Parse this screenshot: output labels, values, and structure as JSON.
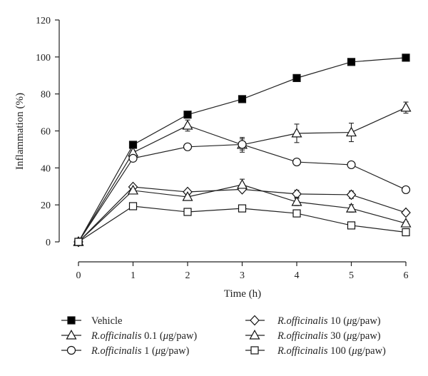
{
  "chart_data": {
    "type": "line",
    "title": "",
    "xlabel": "Time (h)",
    "ylabel": "Inflammation (%)",
    "x": [
      0,
      1,
      2,
      3,
      4,
      5,
      6
    ],
    "xlim": [
      0,
      6
    ],
    "ylim": [
      0,
      120
    ],
    "xticks": [
      0,
      1,
      2,
      3,
      4,
      5,
      6
    ],
    "yticks": [
      0,
      20,
      40,
      60,
      80,
      100,
      120
    ],
    "grid": false,
    "legend_position": "bottom, two columns",
    "series": [
      {
        "name": "Vehicle",
        "marker": "square",
        "fill": "filled",
        "color": "#000000",
        "values": [
          0,
          52.5,
          68.8,
          77.2,
          88.6,
          97.3,
          99.6
        ],
        "errors": [
          0,
          1,
          1.5,
          1,
          1,
          1,
          1
        ]
      },
      {
        "name": "R.officinalis 0.1 (μg/paw)",
        "marker": "triangle",
        "fill": "open",
        "color": "#000000",
        "values": [
          0,
          48.3,
          62.9,
          52.5,
          58.7,
          59.2,
          72.6
        ],
        "errors": [
          0,
          1,
          3,
          4,
          5,
          5,
          3
        ]
      },
      {
        "name": "R.officinalis 1 (μg/paw)",
        "marker": "circle",
        "fill": "open",
        "color": "#000000",
        "values": [
          0,
          45.2,
          51.4,
          52.7,
          43.2,
          41.7,
          28.2
        ],
        "errors": [
          0,
          1,
          1,
          3,
          1,
          1,
          1
        ]
      },
      {
        "name": "R.officinalis 10 (μg/paw)",
        "marker": "diamond",
        "fill": "open",
        "color": "#000000",
        "values": [
          0,
          29.7,
          27.0,
          28.4,
          25.9,
          25.5,
          15.8
        ],
        "errors": [
          0,
          1,
          1,
          1,
          2,
          2,
          1
        ]
      },
      {
        "name": "R.officinalis 30 (μg/paw)",
        "marker": "triangle",
        "fill": "open",
        "color": "#000000",
        "values": [
          0,
          27.8,
          24.3,
          30.9,
          21.6,
          18.1,
          10.0
        ],
        "errors": [
          0,
          1,
          1,
          3,
          2,
          2,
          1
        ]
      },
      {
        "name": "R.officinalis 100 (μg/paw)",
        "marker": "square",
        "fill": "open",
        "color": "#000000",
        "values": [
          0,
          19.3,
          16.2,
          18.1,
          15.4,
          8.9,
          5.2
        ],
        "errors": [
          0,
          1,
          1,
          1,
          1,
          1,
          1
        ]
      }
    ]
  }
}
